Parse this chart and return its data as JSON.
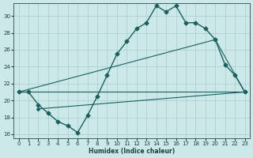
{
  "xlabel": "Humidex (Indice chaleur)",
  "bg_color": "#cce8e8",
  "grid_color": "#a8cccc",
  "line_color": "#1a6060",
  "xlim": [
    -0.5,
    23.5
  ],
  "ylim": [
    15.5,
    31.5
  ],
  "xticks": [
    0,
    1,
    2,
    3,
    4,
    5,
    6,
    7,
    8,
    9,
    10,
    11,
    12,
    13,
    14,
    15,
    16,
    17,
    18,
    19,
    20,
    21,
    22,
    23
  ],
  "yticks": [
    16,
    18,
    20,
    22,
    24,
    26,
    28,
    30
  ],
  "line_wavy": [
    [
      0,
      21
    ],
    [
      1,
      21
    ],
    [
      2,
      19.5
    ],
    [
      3,
      18.5
    ],
    [
      4,
      17.5
    ],
    [
      5,
      17.0
    ],
    [
      6,
      16.2
    ],
    [
      7,
      18.2
    ],
    [
      8,
      20.5
    ],
    [
      9,
      23.0
    ],
    [
      10,
      25.5
    ],
    [
      11,
      27.0
    ],
    [
      12,
      28.5
    ],
    [
      13,
      29.2
    ],
    [
      14,
      31.2
    ],
    [
      15,
      30.5
    ],
    [
      16,
      31.2
    ],
    [
      17,
      29.2
    ],
    [
      18,
      29.2
    ],
    [
      19,
      28.5
    ],
    [
      20,
      27.2
    ],
    [
      21,
      24.2
    ],
    [
      22,
      23.0
    ],
    [
      23,
      21.0
    ]
  ],
  "line_flat": [
    [
      0,
      21
    ],
    [
      23,
      21
    ]
  ],
  "line_diag1": [
    [
      0,
      21
    ],
    [
      20,
      27.2
    ],
    [
      23,
      21
    ]
  ],
  "line_diag2": [
    [
      2,
      19.0
    ],
    [
      23,
      21.0
    ]
  ]
}
